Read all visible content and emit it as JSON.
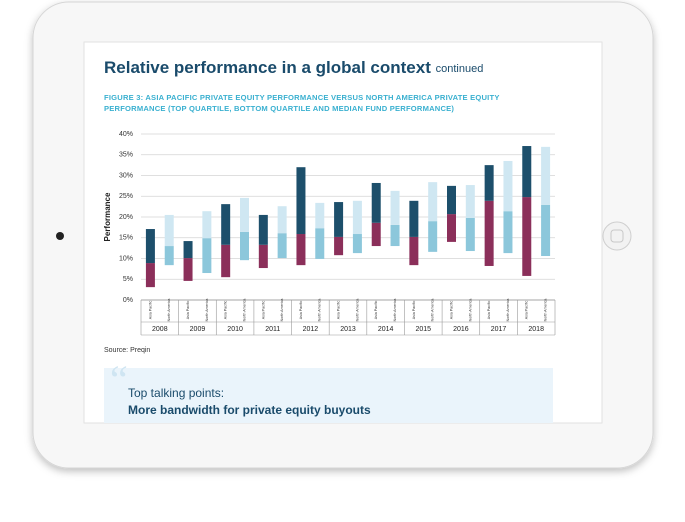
{
  "page": {
    "title": "Relative performance in a global context",
    "title_suffix": "continued",
    "source": "Source: Preqin",
    "callout": {
      "label": "Top talking points:",
      "text": "More bandwidth for private equity buyouts"
    }
  },
  "chart_data": {
    "type": "floating-bar",
    "title": "FIGURE 3: ASIA PACIFIC PRIVATE EQUITY PERFORMANCE VERSUS NORTH AMERICA PRIVATE EQUITY PERFORMANCE (TOP QUARTILE, BOTTOM QUARTILE AND MEDIAN FUND PERFORMANCE)",
    "y_label": "Performance",
    "categories": [
      "2008",
      "2009",
      "2010",
      "2011",
      "2012",
      "2013",
      "2014",
      "2015",
      "2016",
      "2017",
      "2018"
    ],
    "ylim": [
      0,
      40
    ],
    "yticks": [
      {
        "value": 0,
        "label": "0%"
      },
      {
        "value": 5,
        "label": "5%"
      },
      {
        "value": 10,
        "label": "10%"
      },
      {
        "value": 15,
        "label": "15%"
      },
      {
        "value": 20,
        "label": "20%"
      },
      {
        "value": 25,
        "label": "25%"
      },
      {
        "value": 30,
        "label": "30%"
      },
      {
        "value": 35,
        "label": "35%"
      },
      {
        "value": 40,
        "label": "40%"
      }
    ],
    "grid": true,
    "series": [
      {
        "name": "Asia Pacific",
        "lower_color": "#8b2f5a",
        "upper_color": "#1d4f6b",
        "bottom_quartile": [
          3.1,
          4.6,
          5.5,
          7.7,
          8.4,
          10.8,
          13,
          8.4,
          14,
          8.2,
          5.8
        ],
        "median": [
          8.9,
          10.1,
          13.3,
          13.3,
          15.9,
          15.2,
          18.6,
          15.2,
          20.7,
          23.9,
          24.8
        ],
        "top_quartile": [
          17.1,
          14.2,
          23.1,
          20.5,
          32,
          23.6,
          28.2,
          23.9,
          27.5,
          32.5,
          37.1
        ]
      },
      {
        "name": "North America",
        "lower_color": "#8cc7db",
        "upper_color": "#cfe7f2",
        "bottom_quartile": [
          8.4,
          6.5,
          9.6,
          10.1,
          9.9,
          11.3,
          13,
          11.6,
          11.8,
          11.3,
          10.6
        ],
        "median": [
          13,
          14.9,
          16.4,
          16.1,
          17.3,
          15.9,
          18.1,
          19,
          19.8,
          21.4,
          22.9
        ],
        "top_quartile": [
          20.5,
          21.4,
          24.6,
          22.6,
          23.4,
          23.9,
          26.3,
          28.4,
          27.7,
          33.5,
          36.9
        ]
      }
    ]
  }
}
